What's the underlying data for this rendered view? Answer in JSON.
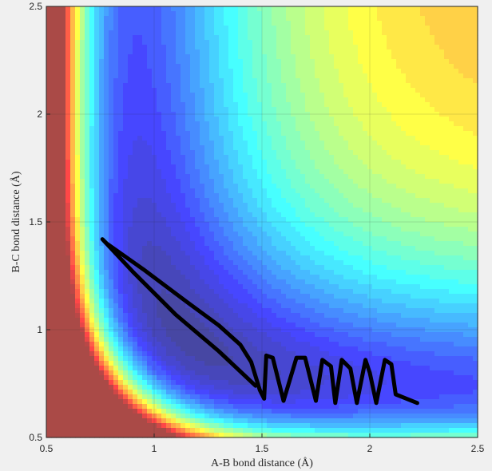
{
  "chart_data": {
    "type": "line",
    "xlabel": "A-B bond distance (Å)",
    "ylabel": "B-C bond distance (Å)",
    "xlim": [
      0.5,
      2.5
    ],
    "ylim": [
      0.5,
      2.5
    ],
    "xticks": [
      0.5,
      1,
      1.5,
      2,
      2.5
    ],
    "yticks": [
      0.5,
      1,
      1.5,
      2,
      2.5
    ],
    "grid": true,
    "x": [
      1.47,
      1.3,
      1.1,
      0.9,
      0.76,
      0.78,
      0.95,
      1.15,
      1.3,
      1.4,
      1.45,
      1.49,
      1.51,
      1.52,
      1.55,
      1.6,
      1.66,
      1.7,
      1.75,
      1.78,
      1.82,
      1.84,
      1.87,
      1.91,
      1.94,
      1.98,
      2.0,
      2.03,
      2.07,
      2.1,
      2.12,
      2.22
    ],
    "series": [
      {
        "color": "#000000",
        "values": [
          0.74,
          0.9,
          1.07,
          1.27,
          1.42,
          1.4,
          1.28,
          1.13,
          1.02,
          0.93,
          0.85,
          0.72,
          0.68,
          0.88,
          0.87,
          0.67,
          0.87,
          0.87,
          0.67,
          0.86,
          0.83,
          0.66,
          0.86,
          0.82,
          0.66,
          0.86,
          0.8,
          0.66,
          0.86,
          0.84,
          0.7,
          0.66
        ]
      }
    ]
  }
}
